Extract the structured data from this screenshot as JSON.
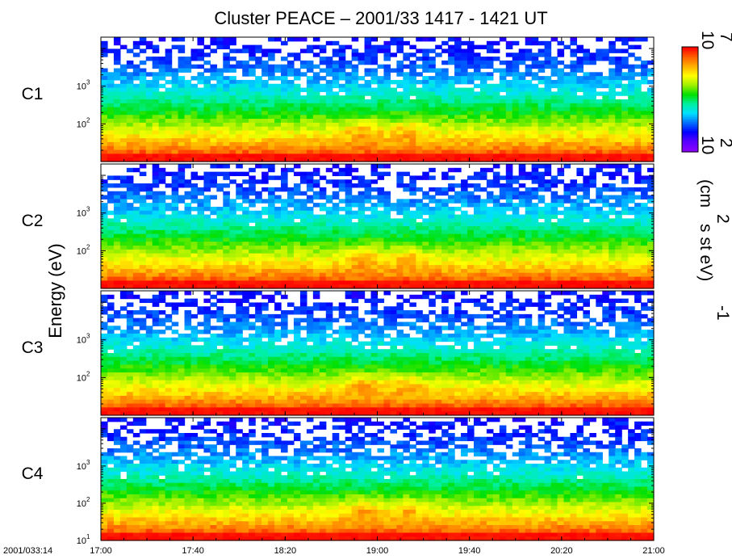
{
  "chart_data": {
    "type": "heatmap",
    "title": "Cluster PEACE – 2001/33   1417 - 1421 UT",
    "ylabel": "Energy (eV)",
    "x_start_label": "2001/033:14",
    "x_tick_labels": [
      "17:00",
      "17:40",
      "18:20",
      "19:00",
      "19:40",
      "20:20",
      "21:00"
    ],
    "xlim_seconds": [
      1020,
      1260
    ],
    "ylim_eV": [
      10,
      20000
    ],
    "yscale": "log",
    "y_ticks": [
      {
        "value": 10,
        "base": "10",
        "exp": "1"
      },
      {
        "value": 100,
        "base": "10",
        "exp": "2"
      },
      {
        "value": 1000,
        "base": "10",
        "exp": "3"
      }
    ],
    "panels": [
      {
        "label": "C1",
        "show_10_tick": false
      },
      {
        "label": "C2",
        "show_10_tick": false
      },
      {
        "label": "C3",
        "show_10_tick": false
      },
      {
        "label": "C4",
        "show_10_tick": true
      }
    ],
    "colorbar": {
      "min": {
        "base": "10",
        "exp": "2"
      },
      "max": {
        "base": "10",
        "exp": "7"
      },
      "scale": "log",
      "colormap": [
        "#8a00ff",
        "#5a00ff",
        "#0000ff",
        "#0070ff",
        "#00e0ff",
        "#00f0a0",
        "#00e000",
        "#a0f000",
        "#ffff00",
        "#ffb000",
        "#ff6000",
        "#ff0000"
      ],
      "unit_prefix": "(cm",
      "unit_exp2": "2",
      "unit_mid": " s st eV)",
      "unit_exp_neg1": "-1"
    }
  }
}
